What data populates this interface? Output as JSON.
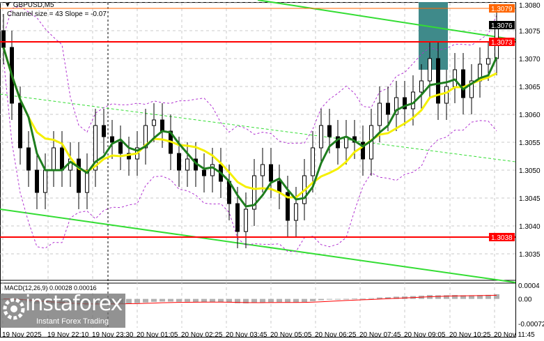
{
  "header": {
    "symbol": "GBPUSD,M5",
    "indicator": "Channel size = 43 Slope = -0.07"
  },
  "macd": {
    "label": "MACD(12,26,9) 0.00028 0.00016",
    "axis": [
      "0.0004",
      "0.00",
      "-0.00072"
    ],
    "range": [
      -0.00072,
      0.0004
    ]
  },
  "logo": {
    "name": "instaforex",
    "tagline": "Instant Forex Trading"
  },
  "colors": {
    "up_candle": "#ffffff",
    "down_candle": "#000000",
    "ma_fast": "#1e7d1e",
    "ma_slow": "#f5f000",
    "channel": "#33dd33",
    "level_red": "#ff0000",
    "level_orange": "#ff6600",
    "bollinger": "#b030d0",
    "macd_signal": "#ff0000",
    "macd_hist": "#b0b0b0",
    "highlight_box": "#3f8a8a"
  },
  "chart_data": {
    "type": "candlestick",
    "symbol": "GBPUSD",
    "timeframe": "M5",
    "ylim": [
      1.3031,
      1.308
    ],
    "y_ticks": [
      "1.3080",
      "1.3075",
      "1.3070",
      "1.3065",
      "1.3060",
      "1.3055",
      "1.3050",
      "1.3045",
      "1.3040",
      "1.3035"
    ],
    "x_ticks": [
      "19 Nov 2025",
      "19 Nov 22:10",
      "19 Nov 23:30",
      "20 Nov 01:05",
      "20 Nov 02:25",
      "20 Nov 03:45",
      "20 Nov 05:05",
      "20 Nov 06:25",
      "20 Nov 07:45",
      "20 Nov 09:05",
      "20 Nov 10:25",
      "20 Nov 11:45"
    ],
    "levels": [
      {
        "label": "1.3079",
        "value": 1.3079,
        "color": "#ff6600"
      },
      {
        "label": "1.3073",
        "value": 1.3073,
        "color": "#ff0000"
      },
      {
        "label": "1.3038",
        "value": 1.3038,
        "color": "#ff0000"
      }
    ],
    "current_price": {
      "label": "1.3076",
      "value": 1.3076
    },
    "closes": [
      1.3072,
      1.3062,
      1.3054,
      1.305,
      1.3046,
      1.305,
      1.3054,
      1.305,
      1.3052,
      1.3046,
      1.305,
      1.3058,
      1.3056,
      1.3055,
      1.3053,
      1.3052,
      1.3054,
      1.3058,
      1.3059,
      1.3057,
      1.3053,
      1.305,
      1.3052,
      1.305,
      1.3049,
      1.3051,
      1.3048,
      1.3044,
      1.3039,
      1.3043,
      1.3049,
      1.3051,
      1.3048,
      1.3046,
      1.3041,
      1.3044,
      1.3049,
      1.3054,
      1.3058,
      1.3056,
      1.3054,
      1.3056,
      1.3055,
      1.3052,
      1.3058,
      1.3062,
      1.306,
      1.3063,
      1.3061,
      1.3064,
      1.3066,
      1.307,
      1.3062,
      1.3065,
      1.3068,
      1.3063,
      1.3066,
      1.3069,
      1.307,
      1.3076
    ]
  }
}
